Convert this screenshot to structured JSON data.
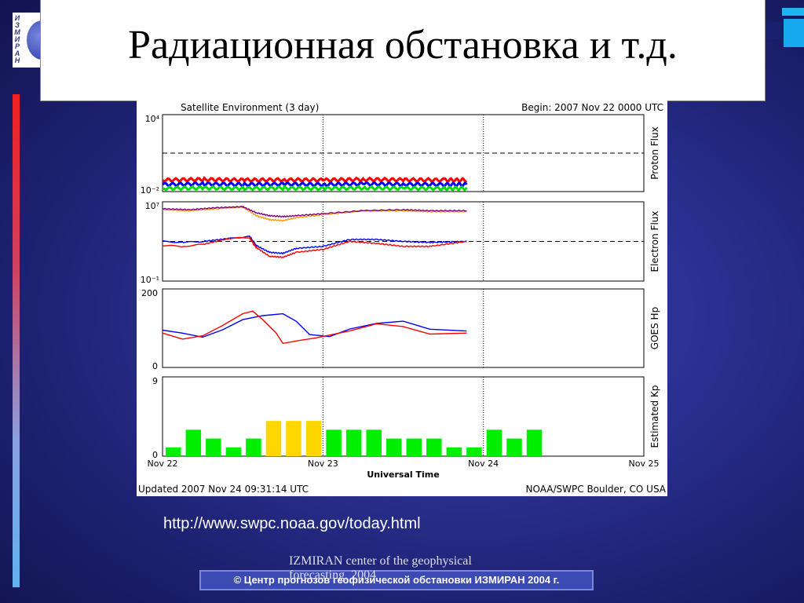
{
  "slide": {
    "title": "Радиационная обстановка и т.д.",
    "url": "http://www.swpc.noaa.gov/today.html",
    "footer_overlay": "IZMIRAN center of the geophysical forecasting, 2004",
    "copyright": "© Центр прогнозов геофизической обстановки ИЗМИРАН  2004 г.",
    "logo_text": "ИЗМИРАН",
    "colors": {
      "background": "#2a3090",
      "accent": "#1fb3f0",
      "footer_bar": "#3c4ab4"
    }
  },
  "chart_data": {
    "type": "line",
    "title": "Satellite Environment (3 day)",
    "begin_label": "Begin:  2007 Nov 22 0000 UTC",
    "updated_label": "Updated 2007 Nov 24 09:31:14 UTC",
    "source_label": "NOAA/SWPC Boulder, CO USA",
    "xlabel": "Universal Time",
    "x_ticks": [
      "Nov 22",
      "Nov 23",
      "Nov 24",
      "Nov 25"
    ],
    "x_range": [
      0,
      72
    ],
    "panels": [
      {
        "name": "Proton Flux",
        "ylabel": "Proton Flux",
        "scale": "log",
        "ylim_labels": [
          "10⁴",
          "10⁻²"
        ],
        "ylim_log": [
          -2,
          4
        ],
        "threshold_log": 1,
        "series": [
          {
            "color": "#ff0000",
            "x": [
              0,
              6,
              12,
              18,
              24,
              30,
              36,
              42,
              45.5
            ],
            "y_log": [
              -1.1,
              -1.05,
              -1.1,
              -1.08,
              -1.1,
              -1.05,
              -1.08,
              -1.1,
              -1.1
            ]
          },
          {
            "color": "#0000ff",
            "x": [
              0,
              6,
              12,
              18,
              24,
              30,
              36,
              42,
              45.5
            ],
            "y_log": [
              -1.45,
              -1.4,
              -1.45,
              -1.42,
              -1.45,
              -1.4,
              -1.43,
              -1.45,
              -1.45
            ]
          },
          {
            "color": "#00dd00",
            "x": [
              0,
              6,
              12,
              18,
              24,
              30,
              36,
              42,
              45.5
            ],
            "y_log": [
              -1.75,
              -1.72,
              -1.75,
              -1.73,
              -1.75,
              -1.72,
              -1.74,
              -1.75,
              -1.75
            ]
          }
        ]
      },
      {
        "name": "Electron Flux",
        "ylabel": "Electron Flux",
        "scale": "log",
        "ylim_labels": [
          "10⁷",
          "10⁻¹"
        ],
        "ylim_log": [
          -1,
          7
        ],
        "threshold_log": 3,
        "series": [
          {
            "color": "#ff9900",
            "x": [
              0,
              4,
              8,
              12,
              14,
              16,
              18,
              20,
              24,
              30,
              36,
              40,
              45.5
            ],
            "y_log": [
              6.2,
              6.1,
              6.3,
              6.5,
              5.6,
              5.2,
              5.1,
              5.4,
              5.7,
              6.1,
              6.1,
              6.0,
              6.0
            ]
          },
          {
            "color": "#800080",
            "x": [
              0,
              4,
              8,
              12,
              14,
              16,
              18,
              20,
              24,
              30,
              36,
              40,
              45.5
            ],
            "y_log": [
              6.3,
              6.2,
              6.4,
              6.5,
              5.9,
              5.6,
              5.5,
              5.6,
              5.8,
              6.1,
              6.2,
              6.1,
              6.1
            ]
          },
          {
            "color": "#0000ff",
            "x": [
              0,
              3,
              6,
              10,
              13,
              14,
              16,
              18,
              20,
              24,
              28,
              32,
              36,
              40,
              45.5
            ],
            "y_log": [
              3.0,
              2.9,
              3.0,
              3.3,
              3.5,
              2.6,
              1.9,
              1.8,
              2.3,
              2.5,
              3.2,
              3.2,
              3.0,
              2.9,
              3.0
            ]
          },
          {
            "color": "#ff0000",
            "x": [
              0,
              3,
              6,
              10,
              13,
              14,
              16,
              18,
              20,
              24,
              28,
              32,
              36,
              40,
              45.5
            ],
            "y_log": [
              2.6,
              2.5,
              2.7,
              3.3,
              3.4,
              2.4,
              1.5,
              1.4,
              1.9,
              2.2,
              3.0,
              2.8,
              2.5,
              2.5,
              3.0
            ]
          }
        ]
      },
      {
        "name": "GOES Hp",
        "ylabel": "GOES Hp",
        "scale": "linear",
        "ylim": [
          0,
          200
        ],
        "series": [
          {
            "color": "#0000ff",
            "x": [
              0,
              3,
              6,
              9,
              12,
              15,
              18,
              20,
              22,
              25,
              28,
              32,
              36,
              40,
              45.5
            ],
            "y": [
              95,
              85,
              80,
              95,
              120,
              135,
              135,
              115,
              85,
              80,
              95,
              115,
              115,
              100,
              90
            ]
          },
          {
            "color": "#ff0000",
            "x": [
              0,
              3,
              6,
              9,
              12,
              13.5,
              15,
              17,
              18,
              20,
              23,
              28,
              32,
              36,
              40,
              45.5
            ],
            "y": [
              85,
              75,
              80,
              105,
              140,
              145,
              120,
              85,
              60,
              70,
              75,
              95,
              110,
              105,
              85,
              90
            ]
          }
        ]
      },
      {
        "name": "Estimated Kp",
        "ylabel": "Estimated Kp",
        "type": "bar",
        "ylim": [
          0,
          9
        ],
        "bar_width_hours": 3,
        "x": [
          0,
          3,
          6,
          9,
          12,
          15,
          18,
          21,
          24,
          27,
          30,
          33,
          36,
          39,
          42,
          45,
          48,
          51,
          54,
          57,
          60,
          63,
          66,
          69
        ],
        "values": [
          1,
          3,
          2,
          1,
          2,
          4,
          4,
          4,
          3,
          3,
          3,
          2,
          2,
          2,
          1,
          1,
          3,
          2,
          3,
          null,
          null,
          null,
          null,
          null
        ],
        "colors": {
          "normal": "#00ee00",
          "active": "#ffd700"
        }
      }
    ]
  }
}
